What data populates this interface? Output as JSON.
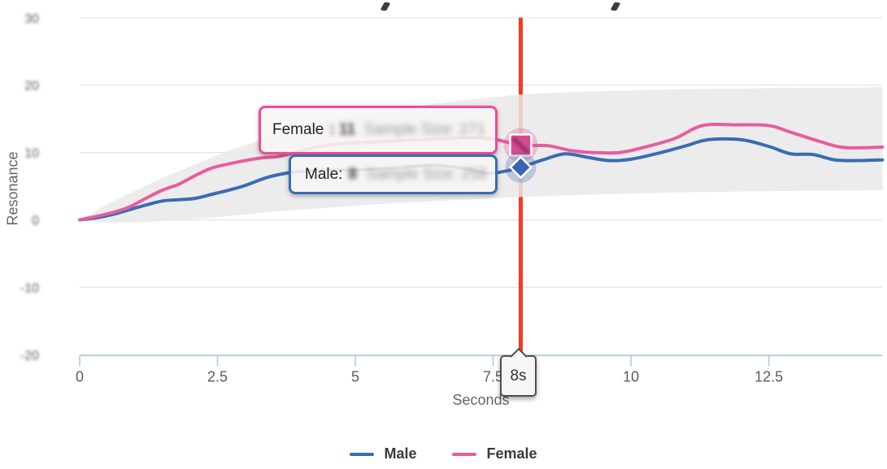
{
  "chart_data": {
    "type": "line",
    "title": "",
    "xlabel": "Seconds",
    "ylabel": "Resonance",
    "xlim": [
      0,
      14.6
    ],
    "ylim": [
      -20,
      30
    ],
    "grid": true,
    "legend_position": "bottom",
    "x_ticks": [
      0,
      2.5,
      5,
      7.5,
      10,
      12.5
    ],
    "x_tick_labels": [
      "0",
      "2.5",
      "5",
      "7.5",
      "10",
      "12.5"
    ],
    "y_ticks": [
      30,
      20,
      10,
      0,
      -10,
      -20
    ],
    "y_tick_labels": [
      "30",
      "20",
      "10",
      "0",
      "-10",
      "-20"
    ],
    "y_tick_labels_blurred": true,
    "series": [
      {
        "name": "Male",
        "color": "#3a6cb2",
        "points": [
          [
            0,
            0
          ],
          [
            0.3,
            0.3
          ],
          [
            0.6,
            0.8
          ],
          [
            0.9,
            1.5
          ],
          [
            1.2,
            2.2
          ],
          [
            1.5,
            2.8
          ],
          [
            1.8,
            3.0
          ],
          [
            2.1,
            3.2
          ],
          [
            2.4,
            3.8
          ],
          [
            2.7,
            4.4
          ],
          [
            3.0,
            5.1
          ],
          [
            3.4,
            6.3
          ],
          [
            3.8,
            7.0
          ],
          [
            4.2,
            7.3
          ],
          [
            4.6,
            7.4
          ],
          [
            5.0,
            7.4
          ],
          [
            5.5,
            7.6
          ],
          [
            6.0,
            7.9
          ],
          [
            6.5,
            8.1
          ],
          [
            7.0,
            7.6
          ],
          [
            7.4,
            6.9
          ],
          [
            7.7,
            7.2
          ],
          [
            8,
            7.8
          ],
          [
            8.4,
            8.9
          ],
          [
            8.8,
            9.8
          ],
          [
            9.2,
            9.3
          ],
          [
            9.6,
            8.8
          ],
          [
            10,
            9.0
          ],
          [
            10.5,
            9.9
          ],
          [
            11,
            11.0
          ],
          [
            11.4,
            11.9
          ],
          [
            12,
            11.9
          ],
          [
            12.5,
            10.9
          ],
          [
            12.9,
            9.8
          ],
          [
            13.3,
            9.7
          ],
          [
            13.7,
            8.9
          ],
          [
            14.1,
            8.8
          ],
          [
            14.56,
            8.9
          ]
        ]
      },
      {
        "name": "Female",
        "color": "#e75c9e",
        "points": [
          [
            0,
            0
          ],
          [
            0.3,
            0.5
          ],
          [
            0.6,
            1.1
          ],
          [
            0.9,
            1.9
          ],
          [
            1.2,
            3.2
          ],
          [
            1.5,
            4.4
          ],
          [
            1.8,
            5.3
          ],
          [
            2.1,
            6.6
          ],
          [
            2.4,
            7.7
          ],
          [
            2.7,
            8.3
          ],
          [
            3.0,
            8.8
          ],
          [
            3.3,
            9.2
          ],
          [
            3.6,
            9.4
          ],
          [
            3.9,
            10.0
          ],
          [
            4.3,
            10.8
          ],
          [
            4.7,
            11.3
          ],
          [
            5.2,
            11.5
          ],
          [
            5.7,
            11.7
          ],
          [
            6.2,
            11.9
          ],
          [
            6.7,
            12.1
          ],
          [
            7.1,
            12.2
          ],
          [
            7.5,
            12.0
          ],
          [
            8,
            11.1
          ],
          [
            8.5,
            11.0
          ],
          [
            8.9,
            10.3
          ],
          [
            9.3,
            10.0
          ],
          [
            9.8,
            10.0
          ],
          [
            10.3,
            10.9
          ],
          [
            10.8,
            12.1
          ],
          [
            11.3,
            14.0
          ],
          [
            11.9,
            14.1
          ],
          [
            12.5,
            14.0
          ],
          [
            12.9,
            13.0
          ],
          [
            13.4,
            11.7
          ],
          [
            13.8,
            10.8
          ],
          [
            14.2,
            10.7
          ],
          [
            14.56,
            10.8
          ]
        ]
      }
    ],
    "band": {
      "color": "#e9e9e9",
      "opacity": 0.85,
      "top": [
        [
          0,
          0
        ],
        [
          0.5,
          2.3
        ],
        [
          1,
          4.3
        ],
        [
          1.5,
          6.2
        ],
        [
          2,
          7.9
        ],
        [
          2.5,
          9.6
        ],
        [
          3,
          11.1
        ],
        [
          3.5,
          12.4
        ],
        [
          4,
          13.6
        ],
        [
          4.5,
          14.6
        ],
        [
          5,
          15.4
        ],
        [
          5.5,
          16.1
        ],
        [
          6,
          16.8
        ],
        [
          6.5,
          17.3
        ],
        [
          7,
          17.8
        ],
        [
          7.5,
          18.2
        ],
        [
          8,
          18.6
        ],
        [
          9,
          19.0
        ],
        [
          10,
          19.2
        ],
        [
          11,
          19.4
        ],
        [
          12,
          19.5
        ],
        [
          13,
          19.6
        ],
        [
          14,
          19.6
        ],
        [
          14.56,
          19.7
        ]
      ],
      "bottom": [
        [
          0,
          0
        ],
        [
          0.5,
          -0.4
        ],
        [
          1,
          -0.4
        ],
        [
          1.5,
          -0.2
        ],
        [
          2,
          0.1
        ],
        [
          2.5,
          0.4
        ],
        [
          3,
          0.8
        ],
        [
          3.5,
          1.2
        ],
        [
          4,
          1.5
        ],
        [
          4.5,
          1.8
        ],
        [
          5,
          2.1
        ],
        [
          5.5,
          2.4
        ],
        [
          6,
          2.6
        ],
        [
          6.5,
          2.8
        ],
        [
          7,
          3.0
        ],
        [
          7.5,
          3.2
        ],
        [
          8,
          3.4
        ],
        [
          9,
          3.7
        ],
        [
          10,
          3.9
        ],
        [
          11,
          4.1
        ],
        [
          12,
          4.2
        ],
        [
          13,
          4.3
        ],
        [
          14,
          4.35
        ],
        [
          14.56,
          4.4
        ]
      ]
    },
    "cursor": {
      "x": 8,
      "label": "8s",
      "color": "#f43a20"
    },
    "markers": [
      {
        "series": "Female",
        "x": 8,
        "value": 11.1,
        "shape": "square",
        "fill": "#d84a90"
      },
      {
        "series": "Male",
        "x": 8,
        "value": 7.8,
        "shape": "diamond",
        "fill": "#3c63b0"
      }
    ]
  },
  "tooltips": {
    "female": {
      "label": "Female",
      "value_blurred": ": 11",
      "sample_blurred": "Sample Size: 271"
    },
    "male": {
      "label": "Male:",
      "value_blurred": "8",
      "sample_blurred": "Sample Size: 258"
    }
  },
  "legend": {
    "items": [
      {
        "label": "Male",
        "color": "#3a6cb2"
      },
      {
        "label": "Female",
        "color": "#e75c9e"
      }
    ]
  },
  "axis": {
    "x_title": "Seconds",
    "y_title": "Resonance"
  },
  "colors": {
    "background": "#ffffff",
    "grid": "#e3e3e3",
    "axis_line": "#afcbe3",
    "tick_text": "#5c5c5c",
    "cursor_red": "#f43a20",
    "male_blue": "#3a6cb2",
    "female_pink": "#e75c9e"
  }
}
